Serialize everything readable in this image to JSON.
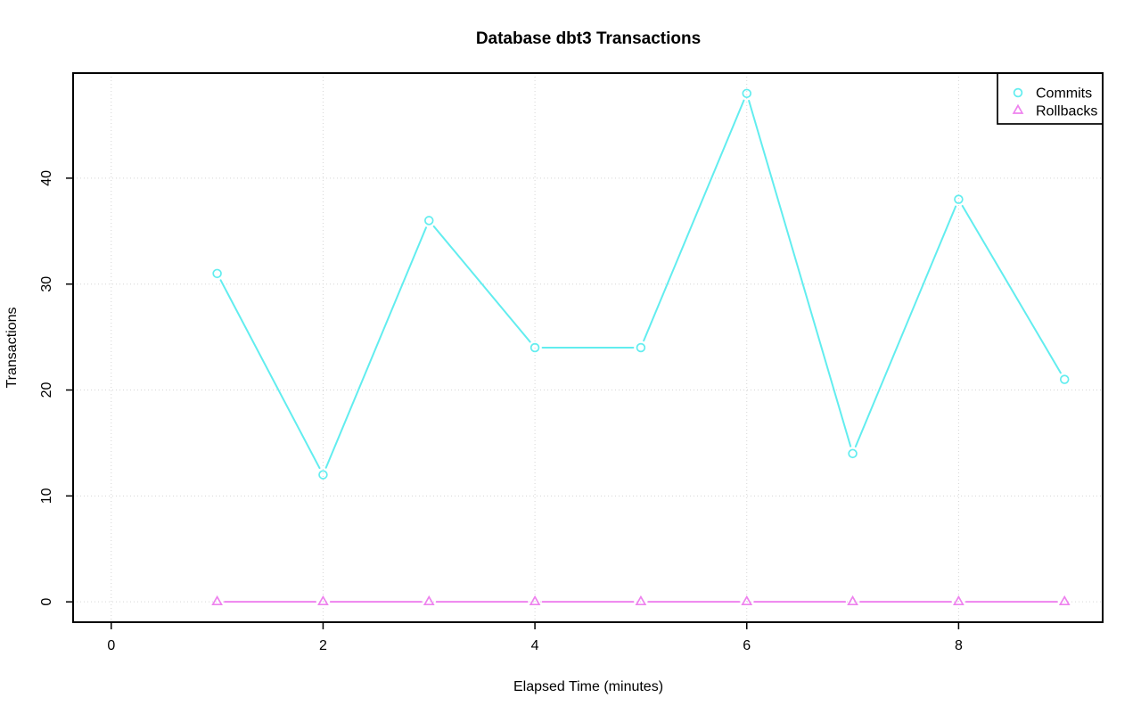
{
  "chart_data": {
    "type": "line",
    "title": "Database dbt3 Transactions",
    "xlabel": "Elapsed Time (minutes)",
    "ylabel": "Transactions",
    "x": [
      1,
      2,
      3,
      4,
      5,
      6,
      7,
      8,
      9
    ],
    "series": [
      {
        "name": "Commits",
        "marker": "circle",
        "color": "#62EDEF",
        "values": [
          31,
          12,
          36,
          24,
          24,
          48,
          14,
          38,
          21
        ]
      },
      {
        "name": "Rollbacks",
        "marker": "triangle",
        "color": "#EE82EE",
        "values": [
          0,
          0,
          0,
          0,
          0,
          0,
          0,
          0,
          0
        ]
      }
    ],
    "xticks": [
      0,
      2,
      4,
      6,
      8
    ],
    "yticks": [
      0,
      10,
      20,
      30,
      40
    ],
    "xlim": [
      -0.36,
      9.36
    ],
    "ylim": [
      -1.92,
      49.92
    ],
    "grid": {
      "style": "dotted",
      "color": "#D5D5D5",
      "x_at": [
        0,
        2,
        4,
        6,
        8
      ],
      "y_at": [
        0,
        10,
        20,
        30,
        40
      ]
    },
    "legend": {
      "position": "top-right",
      "entries": [
        "Commits",
        "Rollbacks"
      ]
    },
    "frame_color": "#000000",
    "text_color": "#000000",
    "background": "#FFFFFF"
  }
}
